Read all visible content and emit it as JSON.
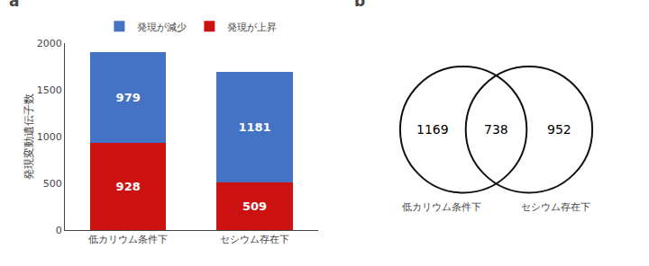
{
  "chart_data": [
    {
      "type": "bar",
      "title": "a",
      "stacked": true,
      "data_labels": true,
      "legend": "top",
      "grid": false,
      "categories": [
        "低カリウム条件下",
        "セシウム存在下"
      ],
      "series": [
        {
          "name": "発現が上昇",
          "color": "#cc1111",
          "values": [
            928,
            509
          ]
        },
        {
          "name": "発現が減少",
          "color": "#4472c4",
          "values": [
            979,
            1181
          ]
        }
      ],
      "ylabel": "発現変動遺伝子数",
      "ylim": [
        0,
        2000
      ],
      "yticks": [
        0,
        500,
        1000,
        1500,
        2000
      ]
    },
    {
      "type": "venn",
      "title": "b",
      "data_labels": true,
      "color": "#111111",
      "categories": [
        "低カリウム条件下",
        null,
        "セシウム存在下"
      ],
      "values": [
        1169,
        738,
        952
      ]
    }
  ]
}
